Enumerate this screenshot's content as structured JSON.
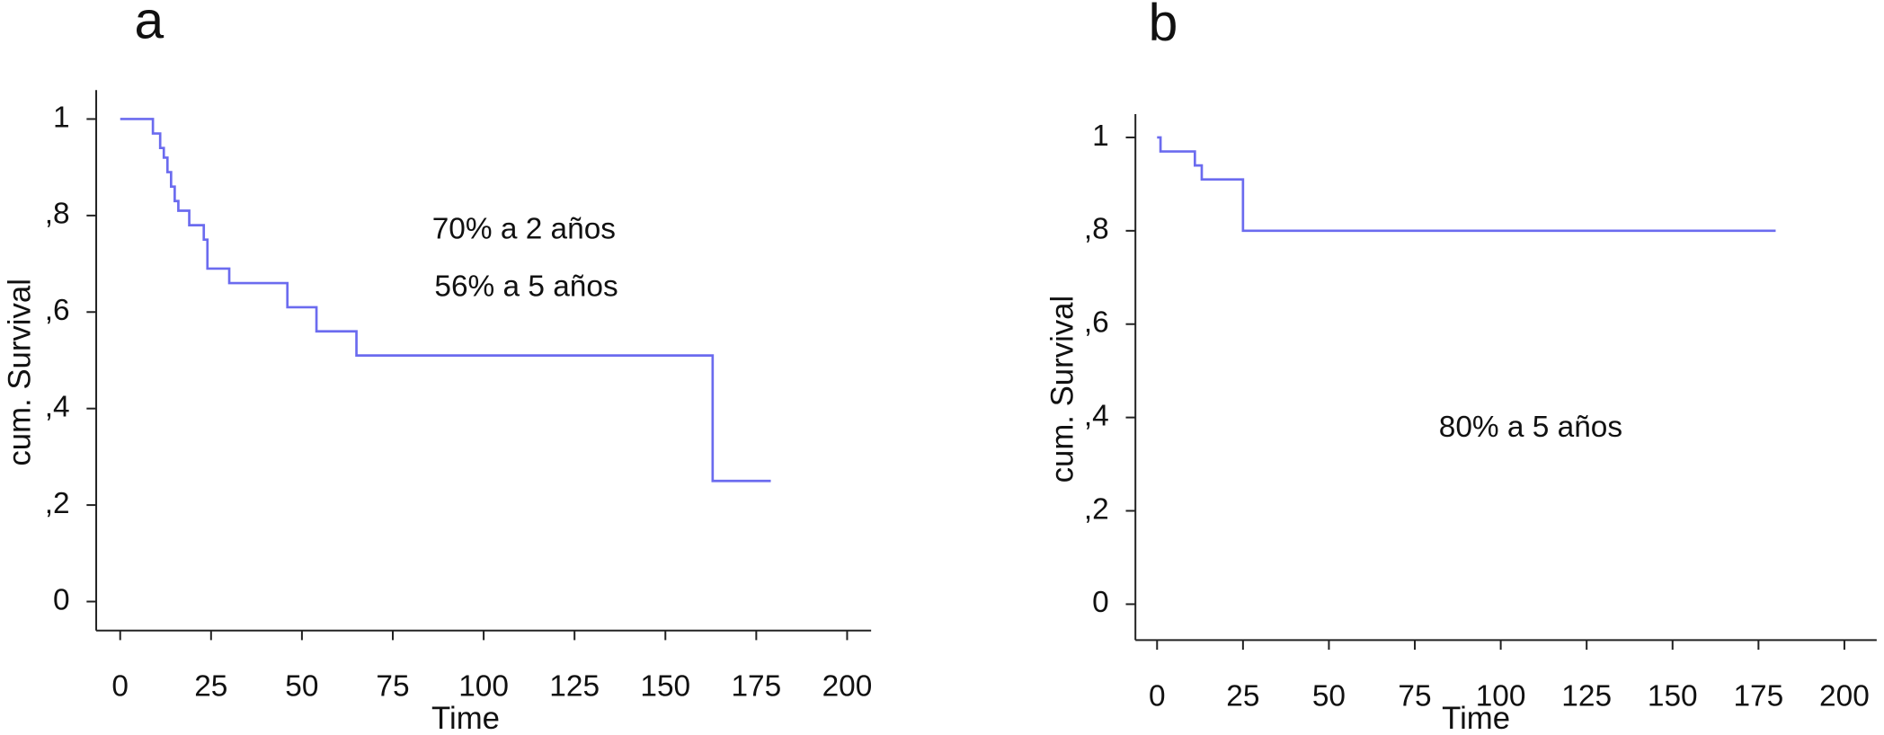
{
  "chart_data": [
    {
      "type": "step",
      "title": "a",
      "xlabel": "Time",
      "ylabel": "cum. Survival",
      "annotations": [
        "70% a 2 años",
        "56% a 5 años"
      ],
      "x": [
        0,
        9,
        11,
        12,
        13,
        14,
        15,
        16,
        19,
        23,
        24,
        30,
        46,
        54,
        65,
        163,
        179
      ],
      "series": [
        {
          "name": "cum. Survival",
          "color": "#6b6bef",
          "values": [
            1.0,
            0.97,
            0.94,
            0.92,
            0.89,
            0.86,
            0.83,
            0.81,
            0.78,
            0.75,
            0.69,
            0.66,
            0.61,
            0.56,
            0.51,
            0.25,
            0.25
          ]
        }
      ],
      "xlim": [
        -6.6,
        206.6
      ],
      "xticks": [
        0,
        25,
        50,
        75,
        100,
        125,
        150,
        175,
        200
      ],
      "ylim": [
        -0.06,
        1.06
      ],
      "yticks": [
        0,
        {
          "value": 0.2,
          "label": ",2"
        },
        {
          "value": 0.4,
          "label": ",4"
        },
        {
          "value": 0.6,
          "label": ",6"
        },
        {
          "value": 0.8,
          "label": ",8"
        },
        1
      ]
    },
    {
      "type": "step",
      "title": "b",
      "xlabel": "Time",
      "ylabel": "cum. Survival",
      "annotations": [
        "80% a 5 años"
      ],
      "x": [
        0,
        1,
        11,
        13,
        25,
        180
      ],
      "series": [
        {
          "name": "cum. Survival",
          "color": "#6b6bef",
          "values": [
            1.0,
            0.97,
            0.94,
            0.91,
            0.8,
            0.8
          ]
        }
      ],
      "xlim": [
        -6.3,
        209.4
      ],
      "xticks": [
        0,
        25,
        50,
        75,
        100,
        125,
        150,
        175,
        200
      ],
      "ylim": [
        -0.077,
        1.05
      ],
      "yticks": [
        0,
        {
          "value": 0.2,
          "label": ",2"
        },
        {
          "value": 0.4,
          "label": ",4"
        },
        {
          "value": 0.6,
          "label": ",6"
        },
        {
          "value": 0.8,
          "label": ",8"
        },
        1
      ]
    }
  ]
}
